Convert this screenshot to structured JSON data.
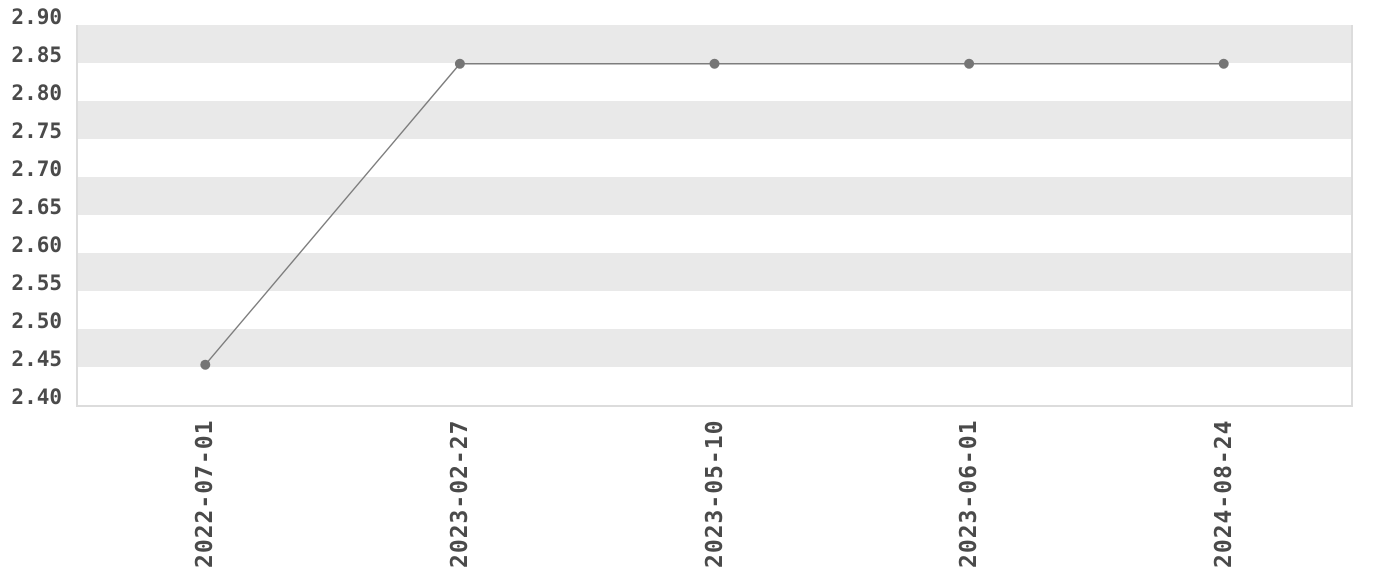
{
  "chart_data": {
    "type": "line",
    "categories": [
      "2022-07-01",
      "2023-02-27",
      "2023-05-10",
      "2023-06-01",
      "2024-08-24"
    ],
    "values": [
      2.453,
      2.849,
      2.849,
      2.849,
      2.849
    ],
    "title": "",
    "xlabel": "",
    "ylabel": "",
    "ylim": [
      2.4,
      2.9
    ],
    "ytick_step": 0.05,
    "ytick_labels": [
      "2.90",
      "2.85",
      "2.80",
      "2.75",
      "2.70",
      "2.65",
      "2.60",
      "2.55",
      "2.50",
      "2.45",
      "2.40"
    ],
    "grid": "horizontal-alternating-stripe-bands",
    "legend": "none",
    "marker": "circle"
  },
  "style": {
    "background_color": "#ffffff",
    "stripe_color": "#e9e9e9",
    "line_color": "#7d7d7d",
    "marker_color": "#757575",
    "tick_label_color": "#4a4a4a",
    "axis_border_color": "#dcdcdc"
  }
}
